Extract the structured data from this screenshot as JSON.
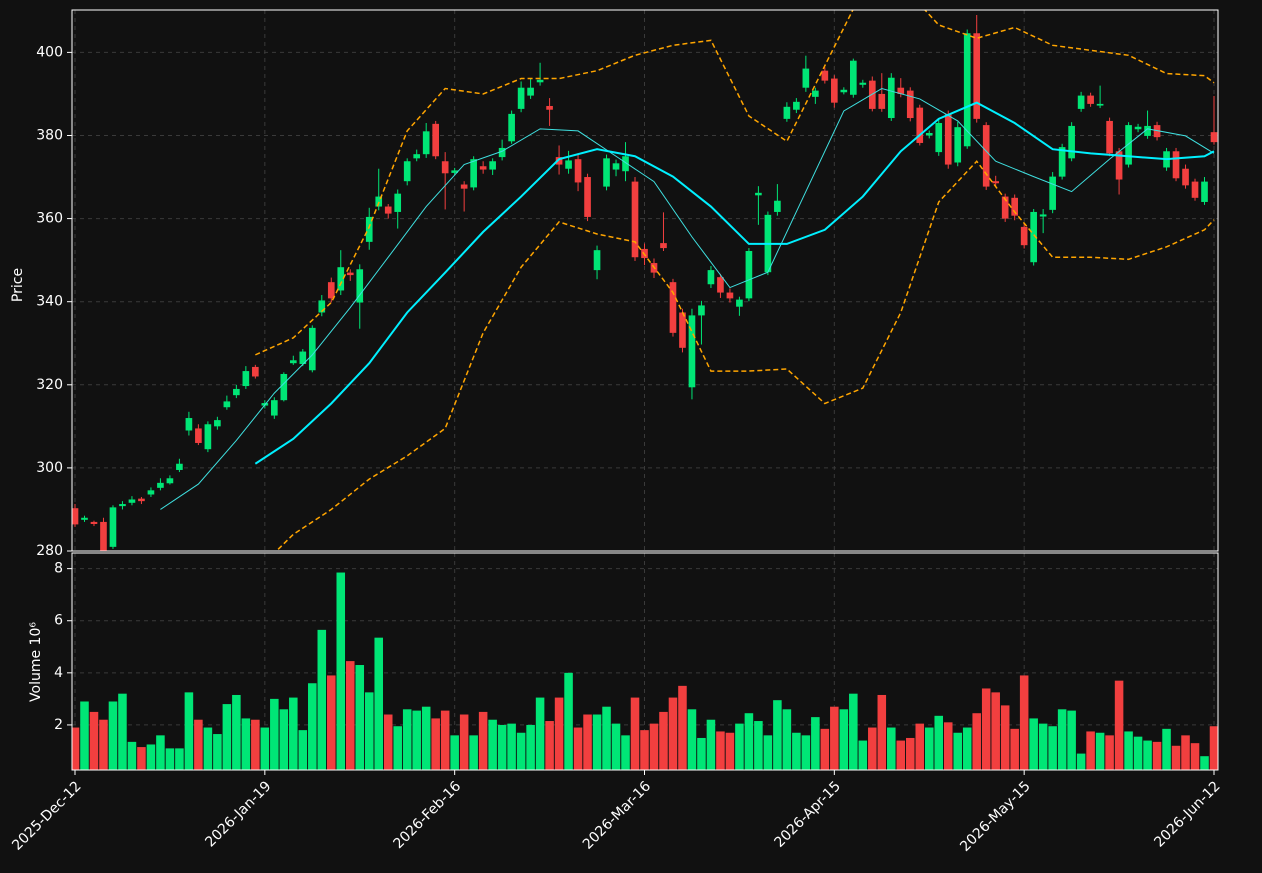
{
  "chart_data": {
    "type": "candlestick",
    "y_label": "Price",
    "y2_label": "Volume  10⁶",
    "categories": [
      "2025-Dec-12",
      null,
      null,
      null,
      null,
      null,
      null,
      null,
      null,
      null,
      null,
      null,
      null,
      null,
      null,
      null,
      null,
      null,
      null,
      null,
      "2026-Jan-19",
      null,
      null,
      null,
      null,
      null,
      null,
      null,
      null,
      null,
      null,
      null,
      null,
      null,
      null,
      null,
      null,
      null,
      null,
      null,
      "2026-Feb-16",
      null,
      null,
      null,
      null,
      null,
      null,
      null,
      null,
      null,
      null,
      null,
      null,
      null,
      null,
      null,
      null,
      null,
      null,
      null,
      "2026-Mar-16",
      null,
      null,
      null,
      null,
      null,
      null,
      null,
      null,
      null,
      null,
      null,
      null,
      null,
      null,
      null,
      null,
      null,
      null,
      null,
      "2026-Apr-15",
      null,
      null,
      null,
      null,
      null,
      null,
      null,
      null,
      null,
      null,
      null,
      null,
      null,
      null,
      null,
      null,
      null,
      null,
      null,
      "2026-May-15",
      null,
      null,
      null,
      null,
      null,
      null,
      null,
      null,
      null,
      null,
      null,
      null,
      null,
      null,
      null,
      null,
      null,
      null,
      null,
      "2026-Jun-12"
    ],
    "open": [
      290.3,
      287.5,
      287,
      287,
      281,
      290.8,
      291.6,
      292.6,
      293.6,
      295.2,
      296.3,
      299.5,
      309,
      309.5,
      304.5,
      310,
      314.6,
      317.5,
      319.7,
      324.3,
      315,
      312.6,
      316.3,
      325.2,
      325,
      323.5,
      337.4,
      344.7,
      342.7,
      347,
      339.8,
      354.4,
      362.9,
      362.9,
      361.6,
      369,
      374.5,
      375.5,
      382.8,
      373.8,
      371,
      368.2,
      367.5,
      372.6,
      371.8,
      374.8,
      378.6,
      386.4,
      389.6,
      392.8,
      387.1,
      374.8,
      372,
      374.3,
      370,
      347.6,
      367.7,
      371.8,
      371.4,
      368.9,
      352.7,
      349.3,
      354.1,
      344.7,
      337.4,
      319.4,
      336.7,
      344.2,
      345.9,
      342.2,
      338.8,
      340.8,
      365.6,
      347.1,
      361.6,
      384,
      386.2,
      391.5,
      389.3,
      395.6,
      393.7,
      390.4,
      389.8,
      392.2,
      393.2,
      390,
      384.2,
      391.5,
      390.8,
      386.7,
      380,
      376,
      385.2,
      373.5,
      377.4,
      404.6,
      382.5,
      369,
      365.3,
      365,
      358,
      349.5,
      360.5,
      362.1,
      370.1,
      374.5,
      386.4,
      389.6,
      387.2,
      383.5,
      376.2,
      373,
      381.5,
      379.9,
      382.5,
      372.3,
      376.2,
      372,
      368.9,
      364,
      380.8
    ],
    "high": [
      291.3,
      288.5,
      287.3,
      288,
      291,
      292,
      293.2,
      293,
      295.3,
      297.5,
      298.2,
      302.2,
      313.5,
      310.5,
      311.2,
      312.3,
      317.4,
      320,
      324.5,
      324.8,
      316.3,
      317,
      323,
      327,
      328.6,
      334.3,
      341.6,
      345.8,
      352.4,
      347.8,
      349,
      362.6,
      372,
      363.5,
      367,
      374.5,
      376.6,
      383,
      383.5,
      376,
      372.2,
      369,
      375,
      373.8,
      374.5,
      379,
      386,
      393,
      393.8,
      397.5,
      389,
      377.6,
      376.3,
      375.7,
      370.8,
      353.5,
      375.4,
      374.2,
      378.4,
      370,
      354,
      350.4,
      361.5,
      345.5,
      338.3,
      338.3,
      340.2,
      348.6,
      346.7,
      343.2,
      341.2,
      352.9,
      367.8,
      361.7,
      368.3,
      388,
      389,
      399.2,
      391.5,
      396.4,
      394.5,
      391.6,
      398.5,
      393.4,
      394.2,
      395,
      395,
      393.8,
      391.6,
      387.4,
      381.2,
      384,
      386,
      383.3,
      405.5,
      409,
      383.2,
      370.3,
      366,
      365.8,
      358.8,
      362.3,
      362.3,
      371.2,
      378,
      383.2,
      390.5,
      390.3,
      392,
      384.3,
      377,
      383.2,
      382.8,
      386,
      383.3,
      377,
      377,
      373,
      369.6,
      370,
      389.5
    ],
    "low": [
      285.8,
      287,
      286,
      280,
      280.5,
      290,
      291,
      291.3,
      293,
      294.6,
      296,
      299,
      307.8,
      305.5,
      303.8,
      309.2,
      314,
      316.8,
      319,
      321.5,
      314.3,
      311.8,
      316,
      324.8,
      324.5,
      323,
      336.5,
      339.8,
      341.6,
      345,
      333.5,
      352.5,
      362,
      360,
      357.6,
      368,
      373.8,
      374.6,
      374.3,
      362.2,
      370.4,
      361.7,
      366.8,
      370.8,
      370.5,
      374,
      378,
      385.6,
      388.8,
      392,
      382.3,
      370.6,
      370.8,
      366.6,
      359.4,
      345.4,
      366.8,
      370.2,
      369,
      349.8,
      348.8,
      345.7,
      352.2,
      331.6,
      327.8,
      316.5,
      329.7,
      343.3,
      340.9,
      339.8,
      336.6,
      340.1,
      358.5,
      346.4,
      360.7,
      383.3,
      385.4,
      390.5,
      387.6,
      392.5,
      386.7,
      389.9,
      389.1,
      391.5,
      385.8,
      385.7,
      383.5,
      389.2,
      383.4,
      377.6,
      379.3,
      375.1,
      372,
      372.6,
      376.8,
      383.1,
      366.9,
      367.8,
      359.2,
      359.6,
      352.8,
      348.7,
      356.5,
      361.3,
      369.4,
      373.8,
      385.7,
      386.9,
      386.6,
      375,
      365.8,
      372.3,
      380.8,
      379.2,
      378.8,
      371.5,
      369,
      367.2,
      364.3,
      363.3,
      377.8
    ],
    "close": [
      286.4,
      288,
      286.5,
      280,
      290.5,
      291.3,
      292.4,
      292,
      294.6,
      296.4,
      297.5,
      301,
      312,
      306,
      310.5,
      311.5,
      316,
      319,
      323.3,
      322,
      315.6,
      316.3,
      322.6,
      325.9,
      328,
      333.7,
      340.3,
      340.8,
      348.3,
      346.4,
      347.8,
      360.4,
      365.3,
      361.2,
      366,
      373.8,
      375.5,
      381,
      375,
      370.9,
      371.6,
      367.2,
      374.3,
      371.8,
      373.8,
      377,
      385.2,
      391.5,
      391.5,
      393.4,
      386.2,
      373,
      374,
      368.7,
      360.4,
      352.4,
      374.5,
      373.3,
      375,
      350.7,
      350.5,
      347,
      352.9,
      332.5,
      328.9,
      336.7,
      339.1,
      347.6,
      342.2,
      340.8,
      340.5,
      352.2,
      366.2,
      360.9,
      364.3,
      386.9,
      388.1,
      396.1,
      390.8,
      393.2,
      387.9,
      391,
      398,
      392.7,
      386.4,
      386.4,
      393.9,
      390,
      384.2,
      378.2,
      380.6,
      383,
      373,
      382,
      404.6,
      384,
      367.7,
      368.5,
      360,
      360.7,
      353.6,
      361.6,
      361,
      370.1,
      377.2,
      382.3,
      389.6,
      387.6,
      387.6,
      375.7,
      369.4,
      382.5,
      382.1,
      382.3,
      379.6,
      376.2,
      369.7,
      368,
      365,
      368.9,
      378.4
    ],
    "volume": [
      1.9,
      2.9,
      2.5,
      2.2,
      2.9,
      3.2,
      1.35,
      1.15,
      1.25,
      1.6,
      1.1,
      1.1,
      3.25,
      2.2,
      1.9,
      1.65,
      2.8,
      3.15,
      2.25,
      2.2,
      1.9,
      3.0,
      2.6,
      3.05,
      1.8,
      3.6,
      5.65,
      3.9,
      7.85,
      4.45,
      4.3,
      3.25,
      5.35,
      2.4,
      1.95,
      2.6,
      2.55,
      2.7,
      2.25,
      2.55,
      1.6,
      2.4,
      1.6,
      2.5,
      2.2,
      2.0,
      2.05,
      1.7,
      2.0,
      3.05,
      2.15,
      3.05,
      4.0,
      1.9,
      2.4,
      2.4,
      2.7,
      2.05,
      1.6,
      3.05,
      1.8,
      2.05,
      2.5,
      3.05,
      3.5,
      2.6,
      1.5,
      2.2,
      1.75,
      1.7,
      2.05,
      2.45,
      2.15,
      1.6,
      2.95,
      2.6,
      1.7,
      1.6,
      2.3,
      1.85,
      2.7,
      2.6,
      3.2,
      1.4,
      1.9,
      3.15,
      1.9,
      1.4,
      1.5,
      2.05,
      1.9,
      2.35,
      2.1,
      1.7,
      1.9,
      2.45,
      3.4,
      3.25,
      2.75,
      1.85,
      3.9,
      2.25,
      2.05,
      1.95,
      2.6,
      2.55,
      0.9,
      1.75,
      1.7,
      1.6,
      3.7,
      1.75,
      1.55,
      1.4,
      1.35,
      1.85,
      1.2,
      1.6,
      1.3,
      0.8,
      1.95
    ],
    "up_color": "#00e676",
    "down_color": "#f23f3f",
    "ylim": [
      280,
      410.2
    ],
    "yticks": [
      280,
      300,
      320,
      340,
      360,
      380,
      400
    ],
    "y2lim": [
      0.27,
      8.6
    ],
    "y2ticks": [
      2,
      4,
      6,
      8
    ],
    "grid": true,
    "overlays": [
      {
        "color": "#3fe0e0",
        "width": 1,
        "dash": false,
        "x": [
          9,
          13,
          17,
          21,
          25,
          29,
          33,
          37,
          41,
          45,
          49,
          53,
          57,
          61,
          65,
          69,
          73,
          77,
          81,
          85,
          89,
          93,
          97,
          101,
          105,
          109,
          113,
          117,
          120
        ],
        "values": [
          290,
          296.1,
          306.6,
          318,
          327.2,
          338.6,
          350.7,
          362.9,
          373,
          376.2,
          381.6,
          381.1,
          375,
          368.9,
          355.6,
          343.4,
          347.1,
          366.5,
          385.9,
          391.3,
          388.8,
          383.5,
          373.8,
          370.1,
          366.5,
          374.3,
          381.6,
          379.9,
          375.7
        ]
      },
      {
        "color": "#00f0ff",
        "width": 2,
        "dash": false,
        "x": [
          19,
          23,
          27,
          31,
          35,
          39,
          43,
          47,
          51,
          55,
          59,
          63,
          67,
          71,
          75,
          79,
          83,
          87,
          91,
          95,
          99,
          103,
          107,
          111,
          115,
          119,
          120
        ],
        "values": [
          301,
          307,
          315.5,
          325.2,
          337.4,
          347,
          356.8,
          365.3,
          374.3,
          376.7,
          375,
          370.1,
          362.9,
          353.9,
          353.9,
          357.3,
          365.3,
          376.2,
          384,
          387.9,
          383,
          376.7,
          375.7,
          375,
          374.3,
          375,
          376.2
        ]
      },
      {
        "color": "#ffa500",
        "width": 1.5,
        "dash": true,
        "x": [
          19,
          23,
          27,
          31,
          35,
          39,
          43,
          47,
          51,
          55,
          59,
          63,
          67,
          71,
          75,
          79,
          83,
          87,
          91,
          95,
          99,
          103,
          107,
          111,
          115,
          119,
          120
        ],
        "values": [
          327.2,
          331.3,
          339.8,
          358,
          381.1,
          391.3,
          390,
          393.7,
          393.7,
          395.6,
          399.3,
          401.7,
          402.9,
          384.7,
          378.6,
          396.8,
          415,
          416.5,
          406.6,
          403.4,
          406,
          401.7,
          400.5,
          399.3,
          394.9,
          394.4,
          392.7
        ]
      },
      {
        "color": "#ffa500",
        "width": 1.5,
        "dash": true,
        "x": [
          19,
          23,
          27,
          31,
          35,
          39,
          43,
          47,
          51,
          55,
          59,
          63,
          67,
          71,
          75,
          79,
          83,
          87,
          91,
          95,
          99,
          103,
          107,
          111,
          115,
          119,
          120
        ],
        "values": [
          275,
          284,
          290,
          297.3,
          302.9,
          309.5,
          332.5,
          348.3,
          359.2,
          356.3,
          354.4,
          342.2,
          323.3,
          323.3,
          323.8,
          315.5,
          319.2,
          337.4,
          364,
          373.8,
          361.6,
          350.7,
          350.7,
          350.2,
          353.2,
          357.3,
          359.7
        ]
      }
    ]
  }
}
